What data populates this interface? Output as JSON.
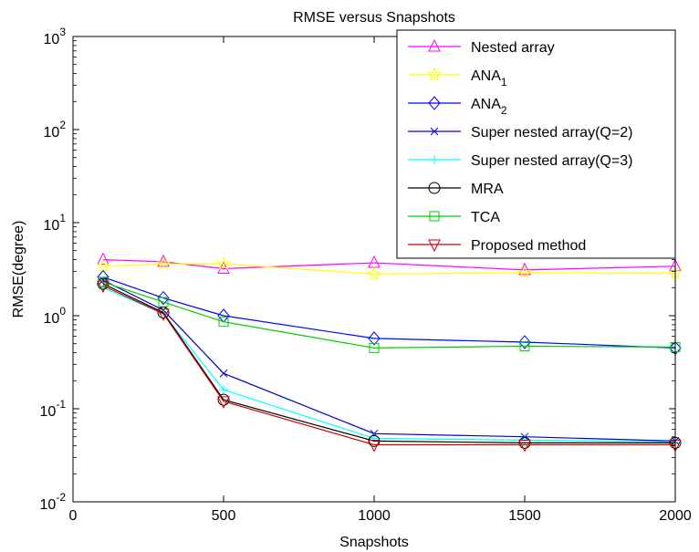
{
  "chart_data": {
    "type": "line",
    "title": "RMSE versus Snapshots",
    "xlabel": "Snapshots",
    "ylabel": "RMSE(degree)",
    "x_scale": "linear",
    "y_scale": "log",
    "xlim": [
      0,
      2000
    ],
    "ylim": [
      0.01,
      1000
    ],
    "x_ticks": [
      0,
      500,
      1000,
      1500,
      2000
    ],
    "x_tick_labels": [
      "0",
      "500",
      "1000",
      "1500",
      "2000"
    ],
    "y_ticks": [
      0.01,
      0.1,
      1,
      10,
      100,
      1000
    ],
    "y_tick_labels": [
      {
        "base": "10",
        "exp": "-2"
      },
      {
        "base": "10",
        "exp": "-1"
      },
      {
        "base": "10",
        "exp": "0"
      },
      {
        "base": "10",
        "exp": "1"
      },
      {
        "base": "10",
        "exp": "2"
      },
      {
        "base": "10",
        "exp": "3"
      }
    ],
    "grid": false,
    "legend_position": "top-right",
    "x": [
      100,
      300,
      500,
      1000,
      1500,
      2000
    ],
    "series": [
      {
        "name": "Nested array",
        "name_sub": "",
        "color": "#ff00ff",
        "marker": "triangle-up",
        "values": [
          4.0,
          3.8,
          3.2,
          3.7,
          3.1,
          3.4
        ]
      },
      {
        "name": "ANA",
        "name_sub": "1",
        "color": "#ffff00",
        "marker": "star",
        "values": [
          3.4,
          3.6,
          3.6,
          2.8,
          2.9,
          2.85
        ]
      },
      {
        "name": "ANA",
        "name_sub": "2",
        "color": "#0000ff",
        "marker": "diamond",
        "values": [
          2.6,
          1.55,
          1.0,
          0.57,
          0.52,
          0.45
        ]
      },
      {
        "name": "Super nested array(Q=2)",
        "name_sub": "",
        "color": "#0000cc",
        "marker": "x",
        "values": [
          2.4,
          1.15,
          0.24,
          0.054,
          0.05,
          0.045
        ]
      },
      {
        "name": "Super nested array(Q=3)",
        "name_sub": "",
        "color": "#00ffff",
        "marker": "plus",
        "values": [
          2.0,
          1.05,
          0.16,
          0.048,
          0.046,
          0.044
        ]
      },
      {
        "name": "MRA",
        "name_sub": "",
        "color": "#000000",
        "marker": "circle",
        "values": [
          2.2,
          1.08,
          0.125,
          0.045,
          0.043,
          0.043
        ]
      },
      {
        "name": "TCA",
        "name_sub": "",
        "color": "#00cc00",
        "marker": "square",
        "values": [
          2.3,
          1.4,
          0.86,
          0.45,
          0.47,
          0.46
        ]
      },
      {
        "name": "Proposed method",
        "name_sub": "",
        "color": "#cc0000",
        "marker": "triangle-down",
        "values": [
          2.1,
          1.05,
          0.12,
          0.041,
          0.041,
          0.041
        ]
      }
    ]
  }
}
